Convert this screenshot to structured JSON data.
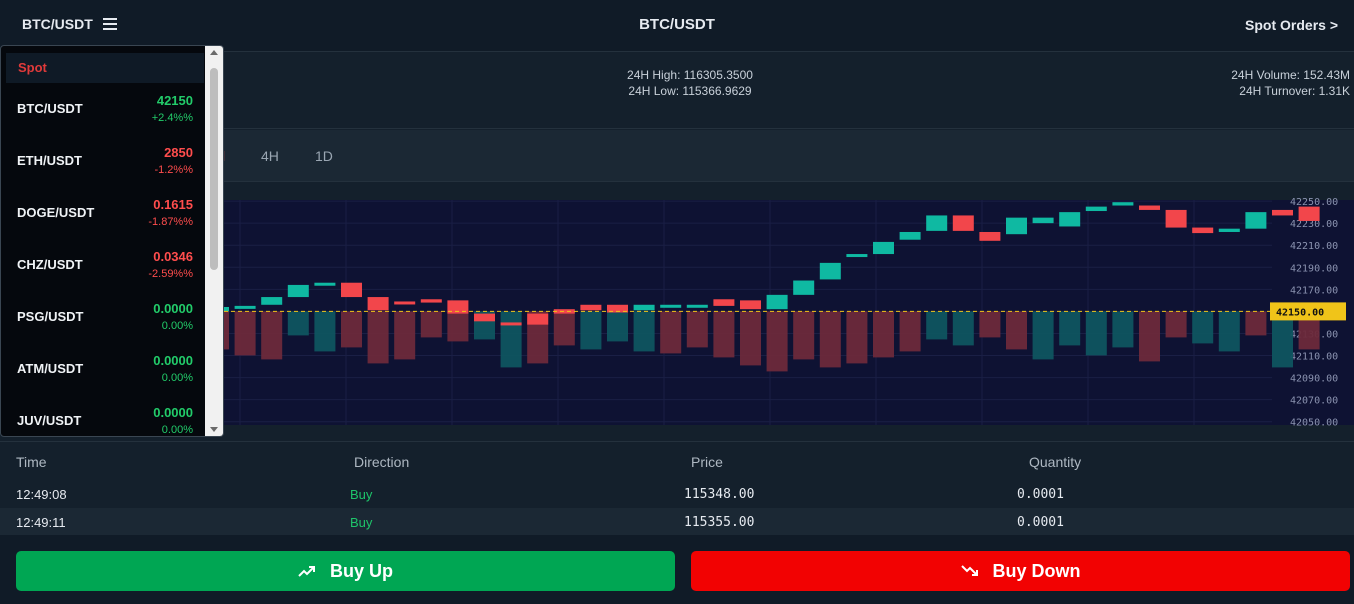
{
  "header": {
    "pair": "BTC/USDT",
    "title": "BTC/USDT",
    "spot_orders": "Spot Orders >"
  },
  "stats": {
    "high": "24H High: 116305.3500",
    "low": "24H Low: 115366.9629",
    "volume": "24H Volume: 152.43M",
    "turnover": "24H Turnover: 1.31K"
  },
  "intervals": {
    "partial": "l",
    "tabs": [
      "4H",
      "1D"
    ]
  },
  "dropdown": {
    "section": "Spot",
    "items": [
      {
        "name": "BTC/USDT",
        "price": "42150",
        "change": "+2.4%%",
        "dir": "pos"
      },
      {
        "name": "ETH/USDT",
        "price": "2850",
        "change": "-1.2%%",
        "dir": "neg"
      },
      {
        "name": "DOGE/USDT",
        "price": "0.1615",
        "change": "-1.87%%",
        "dir": "neg"
      },
      {
        "name": "CHZ/USDT",
        "price": "0.0346",
        "change": "-2.59%%",
        "dir": "neg"
      },
      {
        "name": "PSG/USDT",
        "price": "0.0000",
        "change": "0.00%",
        "dir": "pos"
      },
      {
        "name": "ATM/USDT",
        "price": "0.0000",
        "change": "0.00%",
        "dir": "pos"
      },
      {
        "name": "JUV/USDT",
        "price": "0.0000",
        "change": "0.00%",
        "dir": "pos"
      }
    ]
  },
  "chart": {
    "current_price": "42150.00",
    "y_ticks": [
      "42250.00",
      "42230.00",
      "42210.00",
      "42190.00",
      "42170.00",
      "42150.00",
      "42130.00",
      "42110.00",
      "42090.00",
      "42070.00",
      "42050.00"
    ],
    "colors": {
      "up": "#0fb9a2",
      "down": "#f2464b",
      "price_line": "#f0c419"
    }
  },
  "chart_data": {
    "type": "candlestick",
    "ylim": [
      42047,
      42251
    ],
    "current_price": 42150,
    "candles": [
      [
        42150,
        42154
      ],
      [
        42155,
        42155
      ],
      [
        42156,
        42163
      ],
      [
        42163,
        42174
      ],
      [
        42175,
        42176
      ],
      [
        42176,
        42163
      ],
      [
        42163,
        42151
      ],
      [
        42159,
        42157
      ],
      [
        42161,
        42158
      ],
      [
        42160,
        42148
      ],
      [
        42148,
        42141
      ],
      [
        42140,
        42138
      ],
      [
        42148,
        42138
      ],
      [
        42152,
        42148
      ],
      [
        42156,
        42151
      ],
      [
        42156,
        42149
      ],
      [
        42151,
        42156
      ],
      [
        42156,
        42156
      ],
      [
        42156,
        42156
      ],
      [
        42161,
        42155
      ],
      [
        42160,
        42152
      ],
      [
        42152,
        42165
      ],
      [
        42165,
        42178
      ],
      [
        42179,
        42194
      ],
      [
        42200,
        42202
      ],
      [
        42202,
        42213
      ],
      [
        42215,
        42222
      ],
      [
        42223,
        42237
      ],
      [
        42237,
        42223
      ],
      [
        42222,
        42214
      ],
      [
        42220,
        42235
      ],
      [
        42230,
        42235
      ],
      [
        42227,
        42240
      ],
      [
        42241,
        42245
      ],
      [
        42246,
        42249
      ],
      [
        42246,
        42242
      ],
      [
        42242,
        42226
      ],
      [
        42226,
        42221
      ],
      [
        42222,
        42225
      ],
      [
        42225,
        42240
      ],
      [
        42242,
        42237
      ],
      [
        42245,
        42232
      ]
    ],
    "volume_dirs": "ddduuddddduudduuudddddddddduudduuuudduudud"
  },
  "trades": {
    "headers": [
      "Time",
      "Direction",
      "Price",
      "Quantity"
    ],
    "rows": [
      {
        "time": "12:49:08",
        "direction": "Buy",
        "price": "115348.00",
        "qty": "0.0001"
      },
      {
        "time": "12:49:11",
        "direction": "Buy",
        "price": "115355.00",
        "qty": "0.0001"
      }
    ]
  },
  "actions": {
    "buy_up": "Buy Up",
    "buy_down": "Buy Down"
  }
}
